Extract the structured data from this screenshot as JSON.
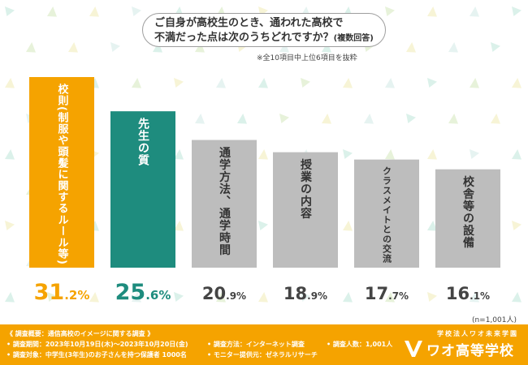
{
  "header": {
    "title_line1": "ご自身が高校生のとき、通われた高校で",
    "title_line2": "不満だった点は次のうちどれですか？",
    "title_suffix": "(複数回答)",
    "subtitle": "※全10項目中上位6項目を抜粋"
  },
  "chart_data": {
    "type": "bar",
    "categories": [
      "校則(制服や頭髪に関するルール等)",
      "先生の質",
      "通学方法、通学時間",
      "授業の内容",
      "クラスメイトとの交流",
      "校舎等の設備"
    ],
    "values": [
      31.2,
      25.6,
      20.9,
      18.9,
      17.7,
      16.1
    ],
    "value_labels": [
      {
        "int": "31",
        "dec": ".2%"
      },
      {
        "int": "25",
        "dec": ".6%"
      },
      {
        "int": "20",
        "dec": ".9%"
      },
      {
        "int": "18",
        "dec": ".9%"
      },
      {
        "int": "17",
        "dec": ".7%"
      },
      {
        "int": "16",
        "dec": ".1%"
      }
    ],
    "unit": "%",
    "ylim": [
      0,
      31.2
    ],
    "colors": [
      "#f5a300",
      "#1e8c7e",
      "#bdbdbd",
      "#bdbdbd",
      "#bdbdbd",
      "#bdbdbd"
    ],
    "label_colors": [
      "#f5a300",
      "#1e8c7e",
      "#444444",
      "#444444",
      "#444444",
      "#444444"
    ],
    "sample_note": "(n=1,001人)"
  },
  "footer": {
    "line1": "《 調査概要：通信高校のイメージに関する調査 》",
    "line2": "• 調査期間：2023年10月19日(木)～2023年10月20日(金)",
    "line3": "• 調査対象：中学生(3年生)のお子さんを持つ保護者 1000名",
    "line4": "• 調査方法：インターネット調査",
    "line5": "• モニター提供元：ゼネラルリサーチ",
    "line6": "• 調査人数：1,001人",
    "logo_small": "学校法人ワオ未来学園",
    "logo_main": "ワオ高等学校"
  }
}
